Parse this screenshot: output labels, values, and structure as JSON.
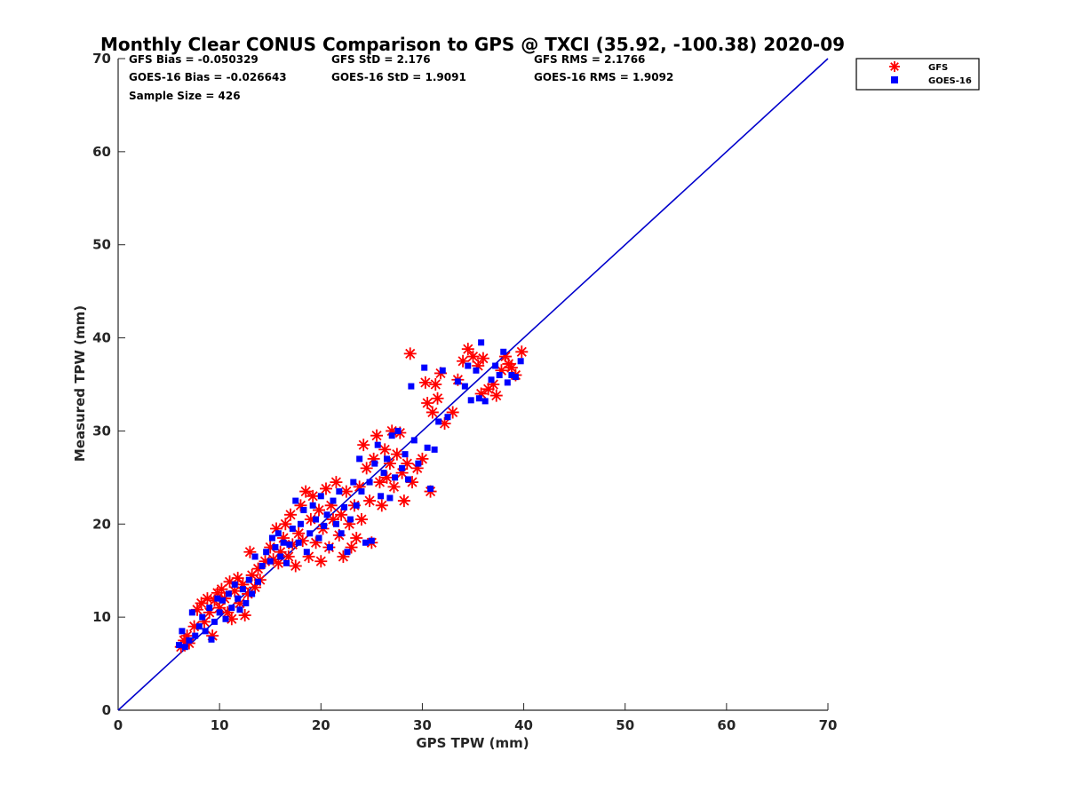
{
  "chart_data": {
    "type": "scatter",
    "title": "Monthly Clear CONUS Comparison to GPS @ TXCI (35.92, -100.38) 2020-09",
    "xlabel": "GPS TPW (mm)",
    "ylabel": "Measured TPW (mm)",
    "xlim": [
      0,
      70
    ],
    "ylim": [
      0,
      70
    ],
    "xticks": [
      0,
      10,
      20,
      30,
      40,
      50,
      60,
      70
    ],
    "yticks": [
      0,
      10,
      20,
      30,
      40,
      50,
      60,
      70
    ],
    "grid": false,
    "legend_position": "top-right",
    "stats": [
      "GFS Bias = -0.050329",
      "GFS StD = 2.176",
      "GFS RMS = 2.1766",
      "GOES-16 Bias = -0.026643",
      "GOES-16 StD = 1.9091",
      "GOES-16 RMS = 1.9092",
      "Sample Size = 426"
    ],
    "reference_line": {
      "x": [
        0,
        70
      ],
      "y": [
        0,
        70
      ],
      "color": "#0000cc"
    },
    "series": [
      {
        "name": "GFS",
        "marker": "asterisk",
        "color": "#ff0000",
        "points": [
          [
            6.2,
            6.8
          ],
          [
            6.5,
            7.5
          ],
          [
            6.8,
            8.0
          ],
          [
            7.0,
            7.2
          ],
          [
            7.5,
            9.0
          ],
          [
            7.8,
            10.8
          ],
          [
            8.2,
            11.5
          ],
          [
            8.5,
            9.5
          ],
          [
            8.8,
            12.0
          ],
          [
            9.0,
            10.5
          ],
          [
            9.3,
            8.0
          ],
          [
            9.5,
            11.8
          ],
          [
            9.8,
            12.6
          ],
          [
            10.0,
            11.0
          ],
          [
            10.2,
            13.0
          ],
          [
            10.5,
            12.0
          ],
          [
            10.8,
            10.5
          ],
          [
            11.0,
            13.8
          ],
          [
            11.2,
            9.8
          ],
          [
            11.5,
            12.8
          ],
          [
            11.8,
            14.2
          ],
          [
            12.0,
            11.5
          ],
          [
            12.3,
            13.5
          ],
          [
            12.5,
            10.2
          ],
          [
            12.8,
            12.5
          ],
          [
            13.0,
            17.0
          ],
          [
            13.2,
            14.5
          ],
          [
            13.5,
            13.2
          ],
          [
            13.8,
            15.2
          ],
          [
            14.0,
            14.0
          ],
          [
            14.5,
            16.0
          ],
          [
            15.0,
            17.5
          ],
          [
            15.3,
            16.2
          ],
          [
            15.6,
            19.5
          ],
          [
            15.8,
            15.8
          ],
          [
            16.0,
            17.0
          ],
          [
            16.3,
            18.5
          ],
          [
            16.5,
            20.0
          ],
          [
            16.8,
            16.5
          ],
          [
            17.0,
            21.0
          ],
          [
            17.2,
            17.8
          ],
          [
            17.5,
            15.5
          ],
          [
            17.8,
            19.0
          ],
          [
            18.0,
            22.0
          ],
          [
            18.2,
            18.2
          ],
          [
            18.5,
            23.5
          ],
          [
            18.8,
            16.5
          ],
          [
            19.0,
            20.5
          ],
          [
            19.2,
            23.0
          ],
          [
            19.5,
            18.0
          ],
          [
            19.8,
            21.5
          ],
          [
            20.0,
            16.0
          ],
          [
            20.2,
            19.5
          ],
          [
            20.5,
            23.8
          ],
          [
            20.8,
            17.5
          ],
          [
            21.0,
            22.0
          ],
          [
            21.2,
            20.5
          ],
          [
            21.5,
            24.5
          ],
          [
            21.8,
            18.8
          ],
          [
            22.0,
            21.0
          ],
          [
            22.2,
            16.5
          ],
          [
            22.5,
            23.5
          ],
          [
            22.8,
            20.0
          ],
          [
            23.0,
            17.5
          ],
          [
            23.3,
            22.0
          ],
          [
            23.5,
            18.5
          ],
          [
            23.8,
            24.0
          ],
          [
            24.0,
            20.5
          ],
          [
            24.2,
            28.5
          ],
          [
            24.5,
            26.0
          ],
          [
            24.8,
            22.5
          ],
          [
            25.0,
            18.0
          ],
          [
            25.2,
            27.0
          ],
          [
            25.5,
            29.5
          ],
          [
            25.8,
            24.5
          ],
          [
            26.0,
            22.0
          ],
          [
            26.3,
            28.0
          ],
          [
            26.5,
            25.0
          ],
          [
            26.8,
            26.5
          ],
          [
            27.0,
            30.0
          ],
          [
            27.2,
            24.0
          ],
          [
            27.5,
            27.5
          ],
          [
            27.8,
            29.8
          ],
          [
            28.0,
            25.5
          ],
          [
            28.2,
            22.5
          ],
          [
            28.5,
            26.5
          ],
          [
            28.8,
            38.3
          ],
          [
            29.0,
            24.5
          ],
          [
            29.5,
            26.0
          ],
          [
            30.0,
            27.0
          ],
          [
            30.3,
            35.2
          ],
          [
            30.5,
            33.0
          ],
          [
            30.8,
            23.5
          ],
          [
            31.0,
            32.0
          ],
          [
            31.3,
            35.0
          ],
          [
            31.5,
            33.5
          ],
          [
            31.8,
            36.2
          ],
          [
            32.2,
            30.8
          ],
          [
            33.0,
            32.0
          ],
          [
            33.5,
            35.5
          ],
          [
            34.0,
            37.5
          ],
          [
            34.5,
            38.8
          ],
          [
            35.0,
            38.0
          ],
          [
            35.5,
            37.0
          ],
          [
            35.8,
            34.0
          ],
          [
            36.0,
            37.8
          ],
          [
            36.5,
            34.5
          ],
          [
            37.0,
            35.0
          ],
          [
            37.3,
            33.8
          ],
          [
            37.8,
            36.5
          ],
          [
            38.2,
            38.0
          ],
          [
            38.5,
            37.2
          ],
          [
            38.8,
            36.8
          ],
          [
            39.2,
            36.0
          ],
          [
            39.8,
            38.5
          ]
        ]
      },
      {
        "name": "GOES-16",
        "marker": "square",
        "color": "#0000ff",
        "points": [
          [
            6.0,
            7.0
          ],
          [
            6.3,
            8.5
          ],
          [
            6.6,
            6.8
          ],
          [
            7.0,
            7.5
          ],
          [
            7.3,
            10.5
          ],
          [
            7.6,
            8.0
          ],
          [
            8.0,
            9.0
          ],
          [
            8.3,
            10.0
          ],
          [
            8.6,
            8.5
          ],
          [
            9.0,
            11.0
          ],
          [
            9.2,
            7.6
          ],
          [
            9.5,
            9.5
          ],
          [
            9.8,
            12.0
          ],
          [
            10.0,
            10.5
          ],
          [
            10.3,
            11.8
          ],
          [
            10.6,
            9.8
          ],
          [
            10.9,
            12.5
          ],
          [
            11.2,
            11.0
          ],
          [
            11.5,
            13.5
          ],
          [
            11.8,
            12.0
          ],
          [
            12.0,
            10.8
          ],
          [
            12.3,
            13.0
          ],
          [
            12.6,
            11.5
          ],
          [
            12.9,
            14.0
          ],
          [
            13.2,
            12.5
          ],
          [
            13.5,
            16.5
          ],
          [
            13.8,
            13.8
          ],
          [
            14.2,
            15.5
          ],
          [
            14.6,
            17.0
          ],
          [
            15.0,
            16.0
          ],
          [
            15.2,
            18.5
          ],
          [
            15.5,
            17.5
          ],
          [
            15.8,
            19.0
          ],
          [
            16.0,
            16.5
          ],
          [
            16.3,
            18.0
          ],
          [
            16.6,
            15.8
          ],
          [
            16.9,
            17.8
          ],
          [
            17.2,
            19.5
          ],
          [
            17.5,
            22.5
          ],
          [
            17.8,
            18.0
          ],
          [
            18.0,
            20.0
          ],
          [
            18.3,
            21.5
          ],
          [
            18.6,
            17.0
          ],
          [
            18.9,
            19.0
          ],
          [
            19.2,
            22.0
          ],
          [
            19.5,
            20.5
          ],
          [
            19.8,
            18.5
          ],
          [
            20.0,
            23.0
          ],
          [
            20.3,
            19.8
          ],
          [
            20.6,
            21.0
          ],
          [
            20.9,
            17.5
          ],
          [
            21.2,
            22.5
          ],
          [
            21.5,
            20.0
          ],
          [
            21.8,
            23.5
          ],
          [
            22.0,
            19.0
          ],
          [
            22.3,
            21.8
          ],
          [
            22.6,
            17.0
          ],
          [
            22.9,
            20.5
          ],
          [
            23.2,
            24.5
          ],
          [
            23.5,
            22.0
          ],
          [
            23.8,
            27.0
          ],
          [
            24.0,
            23.5
          ],
          [
            24.4,
            18.0
          ],
          [
            24.8,
            24.5
          ],
          [
            25.0,
            18.2
          ],
          [
            25.3,
            26.5
          ],
          [
            25.6,
            28.5
          ],
          [
            25.9,
            23.0
          ],
          [
            26.2,
            25.5
          ],
          [
            26.5,
            27.0
          ],
          [
            26.8,
            22.8
          ],
          [
            27.0,
            29.5
          ],
          [
            27.3,
            25.0
          ],
          [
            27.6,
            30.0
          ],
          [
            28.0,
            26.0
          ],
          [
            28.3,
            27.5
          ],
          [
            28.6,
            24.8
          ],
          [
            28.9,
            34.8
          ],
          [
            29.2,
            29.0
          ],
          [
            29.6,
            26.5
          ],
          [
            30.2,
            36.8
          ],
          [
            30.5,
            28.2
          ],
          [
            30.8,
            23.8
          ],
          [
            31.2,
            28.0
          ],
          [
            31.6,
            31.0
          ],
          [
            32.0,
            36.5
          ],
          [
            32.5,
            31.5
          ],
          [
            33.5,
            35.3
          ],
          [
            34.2,
            34.8
          ],
          [
            34.5,
            37.0
          ],
          [
            34.8,
            33.3
          ],
          [
            35.3,
            36.5
          ],
          [
            35.6,
            33.5
          ],
          [
            35.8,
            39.5
          ],
          [
            36.2,
            33.2
          ],
          [
            36.8,
            35.5
          ],
          [
            37.2,
            37.0
          ],
          [
            37.6,
            36.0
          ],
          [
            38.0,
            38.5
          ],
          [
            38.4,
            35.2
          ],
          [
            38.8,
            36.0
          ],
          [
            39.2,
            35.8
          ],
          [
            39.7,
            37.5
          ]
        ]
      }
    ]
  }
}
